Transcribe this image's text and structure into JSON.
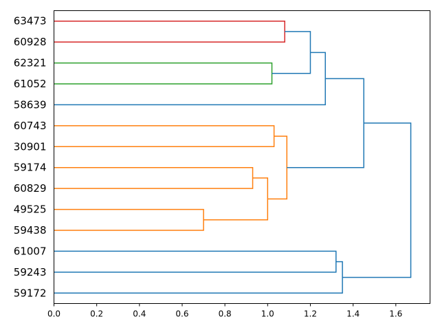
{
  "chart_data": {
    "type": "dendrogram",
    "orientation": "left",
    "leaves": [
      "63473",
      "60928",
      "62321",
      "61052",
      "58639",
      "60743",
      "30901",
      "59174",
      "60829",
      "49525",
      "59438",
      "61007",
      "59243",
      "59172"
    ],
    "xlim": [
      0,
      1.76
    ],
    "xticks": [
      "0.0",
      "0.2",
      "0.4",
      "0.6",
      "0.8",
      "1.0",
      "1.2",
      "1.4",
      "1.6"
    ],
    "xtick_values": [
      0.0,
      0.2,
      0.4,
      0.6,
      0.8,
      1.0,
      1.2,
      1.4,
      1.6
    ],
    "colors": {
      "red": "#d62728",
      "green": "#2ca02c",
      "orange": "#ff7f0e",
      "blue": "#1f77b4"
    },
    "links": [
      {
        "a": 0,
        "b": 1,
        "height": 1.08,
        "color": "red"
      },
      {
        "a": 2,
        "b": 3,
        "height": 1.02,
        "color": "green"
      },
      {
        "a": "l0",
        "b": "l1",
        "height": 1.2,
        "color": "blue"
      },
      {
        "a": "l2",
        "b": 4,
        "height": 1.27,
        "color": "blue"
      },
      {
        "a": 5,
        "b": 6,
        "height": 1.03,
        "color": "orange"
      },
      {
        "a": 7,
        "b": 8,
        "height": 0.93,
        "color": "orange"
      },
      {
        "a": 9,
        "b": 10,
        "height": 0.7,
        "color": "orange"
      },
      {
        "a": "l5",
        "b": "l6",
        "height": 1.0,
        "color": "orange"
      },
      {
        "a": "l4",
        "b": "l7",
        "height": 1.09,
        "color": "orange"
      },
      {
        "a": "l3",
        "b": "l8",
        "height": 1.45,
        "color": "blue"
      },
      {
        "a": 11,
        "b": 12,
        "height": 1.32,
        "color": "blue"
      },
      {
        "a": "l10",
        "b": 13,
        "height": 1.35,
        "color": "blue"
      },
      {
        "a": "l9",
        "b": "l11",
        "height": 1.67,
        "color": "blue"
      }
    ]
  }
}
